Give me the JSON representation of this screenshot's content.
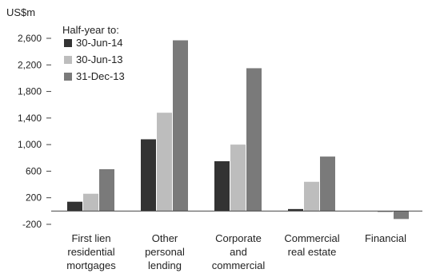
{
  "chart_data": {
    "type": "bar",
    "unit_label": "US$m",
    "legend_title": "Half-year to:",
    "legend_position": "top-left",
    "grid": false,
    "categories": [
      [
        "First lien",
        "residential",
        "mortgages"
      ],
      [
        "Other",
        "personal",
        "lending"
      ],
      [
        "Corporate",
        "and",
        "commercial"
      ],
      [
        "Commercial",
        "real estate"
      ],
      [
        "Financial"
      ]
    ],
    "y_ticks": [
      "2,600",
      "2,200",
      "1,800",
      "1,400",
      "1,000",
      "600",
      "200",
      "-200"
    ],
    "ylim": [
      -200,
      2600
    ],
    "series": [
      {
        "name": "30-Jun-14",
        "color": "#333333",
        "values": [
          140,
          1080,
          750,
          30,
          0
        ]
      },
      {
        "name": "30-Jun-13",
        "color": "#bdbdbd",
        "values": [
          260,
          1480,
          1000,
          440,
          -20
        ]
      },
      {
        "name": "31-Dec-13",
        "color": "#7a7a7a",
        "values": [
          630,
          2570,
          2150,
          820,
          -120
        ]
      }
    ]
  }
}
